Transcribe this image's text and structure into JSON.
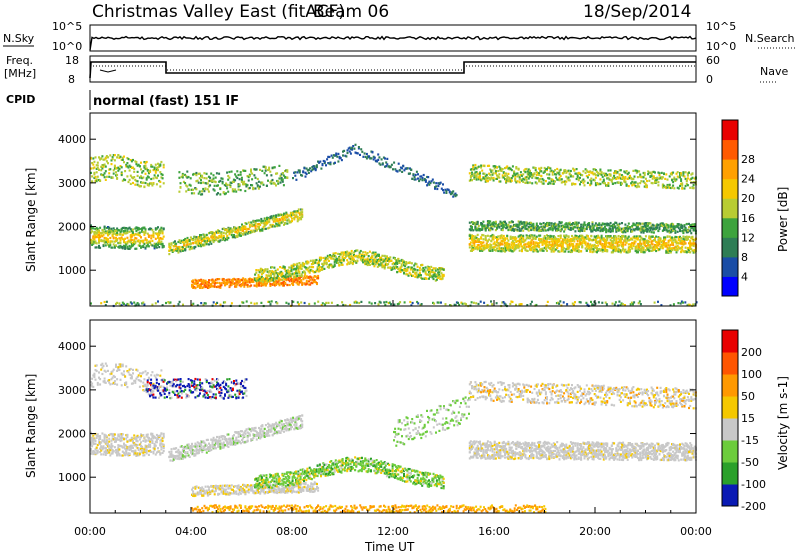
{
  "header": {
    "radar": "Christmas Valley East (fitACF)",
    "beam": "Beam 06",
    "date": "18/Sep/2014"
  },
  "panels": {
    "nsky": {
      "left_label": "N.Sky",
      "left_top": "10^5",
      "left_bottom": "10^0",
      "right_top": "10^5",
      "right_bottom": "10^0",
      "right_label": "N.Search"
    },
    "freq": {
      "left_label_1": "Freq.",
      "left_label_2": "[MHz]",
      "left_top": "18",
      "left_bottom": "8",
      "right_top": "60",
      "right_bottom": "0",
      "right_label": "Nave"
    },
    "cpid": {
      "label": "CPID",
      "mode": "normal (fast) 151 IF"
    }
  },
  "chart_data": [
    {
      "type": "heatmap",
      "name": "power",
      "ylabel": "Slant Range [km]",
      "yticks": [
        "1000",
        "2000",
        "3000",
        "4000"
      ],
      "colorbar": {
        "label": "Power [dB]",
        "ticks": [
          "4",
          "8",
          "12",
          "16",
          "20",
          "24",
          "28"
        ],
        "colors": [
          "#0000ff",
          "#1a4da6",
          "#2e7d55",
          "#3da33d",
          "#b8cc33",
          "#f5c800",
          "#ffa000",
          "#ff5a00",
          "#e80000"
        ]
      }
    },
    {
      "type": "heatmap",
      "name": "velocity",
      "ylabel": "Slant Range [km]",
      "yticks": [
        "1000",
        "2000",
        "3000",
        "4000"
      ],
      "colorbar": {
        "label": "Velocity [m s-1]",
        "ticks": [
          "200",
          "100",
          "50",
          "15",
          "-15",
          "-50",
          "-100",
          "-200"
        ],
        "colors": [
          "#0a1ab4",
          "#2aa02a",
          "#6ccc3c",
          "#c8c8c8",
          "#f5c800",
          "#ff9900",
          "#ff5500",
          "#e80000"
        ]
      }
    }
  ],
  "xaxis": {
    "label": "Time UT",
    "ticks": [
      "00:00",
      "04:00",
      "08:00",
      "12:00",
      "16:00",
      "20:00",
      "00:00"
    ]
  }
}
